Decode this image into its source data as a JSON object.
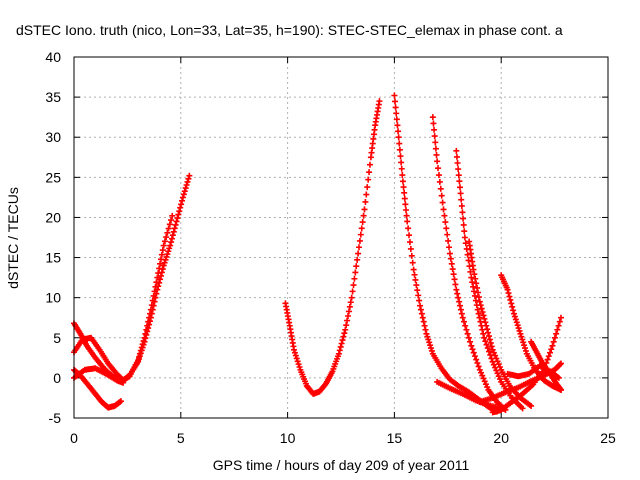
{
  "chart_data": {
    "type": "scatter",
    "title": "dSTEC Iono. truth (nico, Lon=33, Lat=35, h=190): STEC-STEC_elemax in phase cont. a",
    "xlabel": "GPS time / hours of day 209 of year 2011",
    "ylabel": "dSTEC  / TECUs",
    "xlim": [
      0,
      25
    ],
    "ylim": [
      -5,
      40
    ],
    "x_ticks": [
      "0",
      "5",
      "10",
      "15",
      "20",
      "25"
    ],
    "y_ticks": [
      "-5",
      "0",
      "5",
      "10",
      "15",
      "20",
      "25",
      "30",
      "35",
      "40"
    ],
    "grid": true,
    "marker": "plus",
    "color": "#ff0000",
    "series": [
      {
        "x": [
          0.0,
          0.3,
          0.6,
          1.0,
          1.4,
          1.8,
          2.1,
          2.3,
          2.6,
          3.0,
          3.3,
          3.6,
          3.9,
          4.2,
          4.5,
          4.8,
          5.1,
          5.4
        ],
        "y": [
          6.8,
          5.5,
          4.0,
          2.5,
          1.2,
          0.2,
          -0.4,
          -0.3,
          0.3,
          2.0,
          4.5,
          7.5,
          11.0,
          14.0,
          16.5,
          19.5,
          22.5,
          25.2
        ]
      },
      {
        "x": [
          0.0,
          0.4,
          0.8,
          1.2,
          1.6,
          2.0,
          2.3,
          2.6,
          3.0,
          3.3,
          3.6,
          3.9,
          4.2,
          4.6
        ],
        "y": [
          3.2,
          4.8,
          5.0,
          3.5,
          1.8,
          0.5,
          -0.3,
          0.2,
          2.2,
          5.0,
          8.5,
          12.5,
          16.5,
          20.2
        ]
      },
      {
        "x": [
          0.0,
          0.3,
          0.7,
          1.0,
          1.3,
          1.6,
          1.9,
          2.2
        ],
        "y": [
          1.0,
          0.3,
          -1.0,
          -2.0,
          -3.0,
          -3.7,
          -3.5,
          -2.9
        ]
      },
      {
        "x": [
          0.0,
          0.5,
          1.0,
          1.5,
          2.0,
          2.3
        ],
        "y": [
          0.0,
          1.0,
          1.2,
          0.5,
          -0.3,
          -0.6
        ]
      },
      {
        "x": [
          9.9,
          10.1,
          10.3,
          10.6,
          10.9,
          11.2,
          11.5,
          11.8,
          12.1,
          12.4,
          12.7,
          13.0,
          13.3,
          13.6,
          13.9,
          14.1,
          14.3
        ],
        "y": [
          9.3,
          6.5,
          3.5,
          1.0,
          -1.0,
          -2.0,
          -1.7,
          -0.7,
          0.8,
          3.0,
          6.0,
          10.0,
          15.5,
          21.0,
          27.5,
          31.5,
          34.5
        ]
      },
      {
        "x": [
          15.0,
          15.2,
          15.4,
          15.6,
          15.9,
          16.2,
          16.5,
          16.8,
          17.2,
          17.6,
          18.0,
          18.5,
          19.0,
          19.4,
          19.8
        ],
        "y": [
          35.2,
          30.0,
          24.5,
          19.5,
          13.5,
          9.0,
          5.5,
          3.0,
          1.2,
          -0.2,
          -1.0,
          -1.8,
          -2.8,
          -3.6,
          -4.2
        ]
      },
      {
        "x": [
          16.8,
          17.0,
          17.3,
          17.6,
          17.9,
          18.2,
          18.6,
          19.0,
          19.4,
          19.8,
          20.2
        ],
        "y": [
          32.5,
          27.0,
          21.0,
          15.5,
          11.0,
          7.5,
          4.0,
          1.0,
          -1.5,
          -3.0,
          -4.0
        ]
      },
      {
        "x": [
          17.9,
          18.1,
          18.3,
          18.6,
          18.9,
          19.2,
          19.6,
          20.0,
          20.5,
          21.0
        ],
        "y": [
          28.3,
          23.0,
          17.5,
          12.5,
          8.5,
          5.0,
          2.0,
          -0.5,
          -2.5,
          -3.8
        ]
      },
      {
        "x": [
          18.5,
          18.7,
          19.0,
          19.3,
          19.6,
          20.0,
          20.4,
          20.9,
          21.4
        ],
        "y": [
          17.0,
          13.5,
          9.5,
          6.5,
          3.5,
          1.0,
          -1.0,
          -2.5,
          -3.5
        ]
      },
      {
        "x": [
          20.0,
          20.3,
          20.6,
          20.9,
          21.2,
          21.6,
          22.0,
          22.4,
          22.8
        ],
        "y": [
          12.8,
          11.0,
          8.0,
          5.5,
          3.0,
          1.0,
          -0.3,
          -1.0,
          -1.5
        ]
      },
      {
        "x": [
          19.6,
          20.0,
          20.5,
          21.0,
          21.5,
          22.0,
          22.4,
          22.8
        ],
        "y": [
          -4.3,
          -4.0,
          -3.0,
          -2.0,
          -0.8,
          1.0,
          4.0,
          7.5
        ]
      },
      {
        "x": [
          20.3,
          20.8,
          21.3,
          21.8,
          22.3,
          22.7
        ],
        "y": [
          0.5,
          0.2,
          0.5,
          1.5,
          0.8,
          0.0
        ]
      },
      {
        "x": [
          21.4,
          21.7,
          22.0,
          22.3,
          22.6,
          22.8
        ],
        "y": [
          4.5,
          3.0,
          1.5,
          0.5,
          -0.8,
          -1.5
        ]
      },
      {
        "x": [
          19.0,
          19.6,
          20.2,
          20.8,
          21.4,
          22.0,
          22.5,
          22.8
        ],
        "y": [
          -3.0,
          -2.5,
          -1.8,
          -1.2,
          -0.4,
          0.3,
          1.0,
          1.8
        ]
      },
      {
        "x": [
          17.0,
          17.6,
          18.2,
          18.8,
          19.4,
          20.0
        ],
        "y": [
          -0.5,
          -1.3,
          -2.0,
          -2.8,
          -3.4,
          -3.8
        ]
      }
    ]
  }
}
